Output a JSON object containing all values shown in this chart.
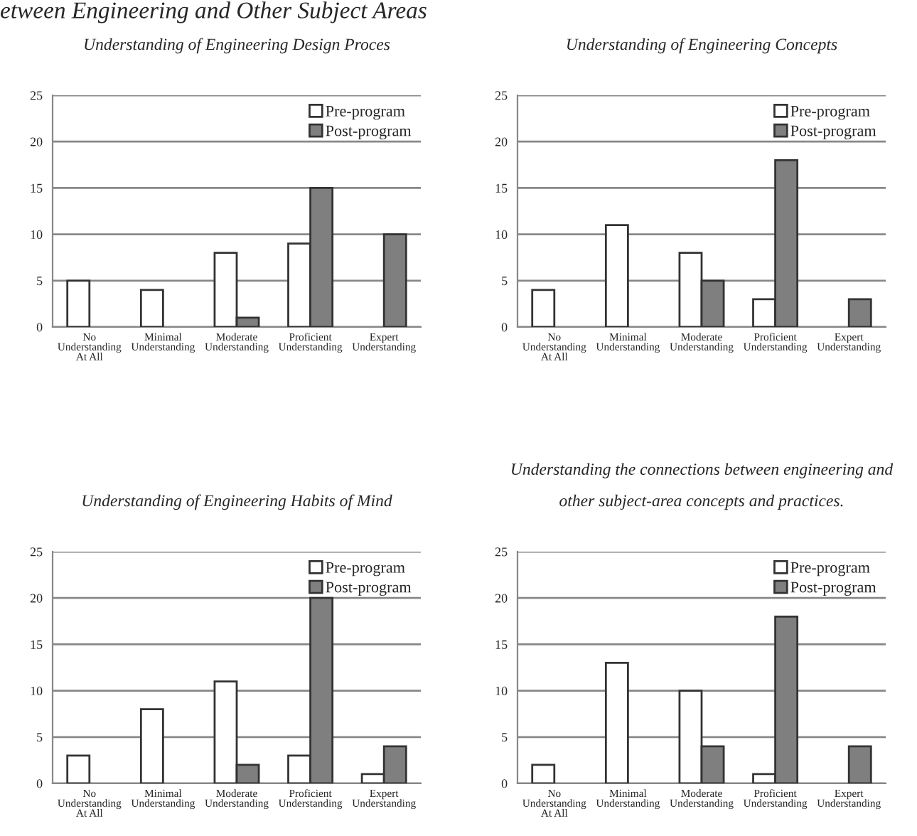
{
  "chart_data": [
    {
      "type": "bar",
      "title": "Understanding of Engineering Design Proces",
      "annotations": [
        "etween Engineering and Other Subject Areas"
      ],
      "categories": [
        "No Understanding At All",
        "Minimal Understanding",
        "Moderate Understanding",
        "Proficient Understanding",
        "Expert Understanding"
      ],
      "series": [
        {
          "name": "Pre-program",
          "color": "#ffffff",
          "values": [
            5,
            4,
            8,
            9,
            0
          ]
        },
        {
          "name": "Post-program",
          "color": "#7f7f7f",
          "values": [
            0,
            0,
            1,
            15,
            10
          ]
        }
      ],
      "ylim": [
        0,
        25
      ],
      "yticks": [
        0,
        5,
        10,
        15,
        20,
        25
      ],
      "grid": "y",
      "legend": "top right"
    },
    {
      "type": "bar",
      "title": "Understanding of Engineering Concepts",
      "categories": [
        "No Understanding At All",
        "Minimal Understanding",
        "Moderate Understanding",
        "Proficient Understanding",
        "Expert Understanding"
      ],
      "series": [
        {
          "name": "Pre-program",
          "color": "#ffffff",
          "values": [
            4,
            11,
            8,
            3,
            0
          ]
        },
        {
          "name": "Post-program",
          "color": "#7f7f7f",
          "values": [
            0,
            0,
            5,
            18,
            3
          ]
        }
      ],
      "ylim": [
        0,
        25
      ],
      "yticks": [
        0,
        5,
        10,
        15,
        20,
        25
      ],
      "grid": "y",
      "legend": "top right"
    },
    {
      "type": "bar",
      "title": "Understanding of Engineering Habits of Mind",
      "categories": [
        "No Understanding At All",
        "Minimal Understanding",
        "Moderate Understanding",
        "Proficient Understanding",
        "Expert Understanding"
      ],
      "series": [
        {
          "name": "Pre-program",
          "color": "#ffffff",
          "values": [
            3,
            8,
            11,
            3,
            1
          ]
        },
        {
          "name": "Post-program",
          "color": "#7f7f7f",
          "values": [
            0,
            0,
            2,
            20,
            4
          ]
        }
      ],
      "ylim": [
        0,
        25
      ],
      "yticks": [
        0,
        5,
        10,
        15,
        20,
        25
      ],
      "grid": "y",
      "legend": "top right"
    },
    {
      "type": "bar",
      "title": "Understanding the connections between engineering and other subject-area concepts and practices.",
      "categories": [
        "No Understanding At All",
        "Minimal Understanding",
        "Moderate Understanding",
        "Proficient Understanding",
        "Expert Understanding"
      ],
      "series": [
        {
          "name": "Pre-program",
          "color": "#ffffff",
          "values": [
            2,
            13,
            10,
            1,
            0
          ]
        },
        {
          "name": "Post-program",
          "color": "#7f7f7f",
          "values": [
            0,
            0,
            4,
            18,
            4
          ]
        }
      ],
      "ylim": [
        0,
        25
      ],
      "yticks": [
        0,
        5,
        10,
        15,
        20,
        25
      ],
      "grid": "y",
      "legend": "top right"
    }
  ]
}
